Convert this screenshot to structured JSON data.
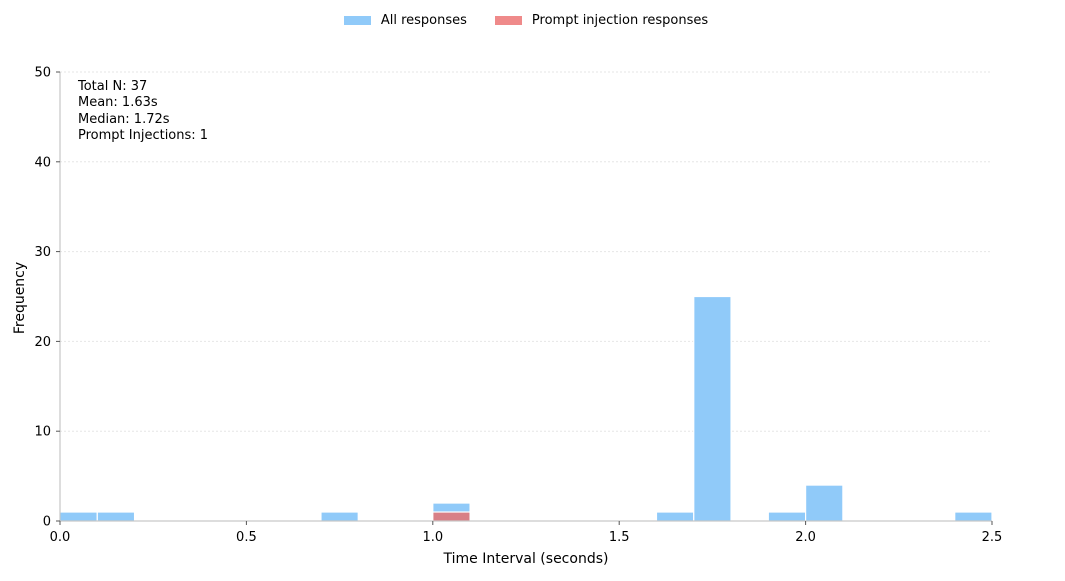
{
  "chart_data": {
    "type": "bar",
    "title": "",
    "xlabel": "Time Interval (seconds)",
    "ylabel": "Frequency",
    "xlim": [
      0,
      2.5
    ],
    "ylim": [
      0,
      50
    ],
    "xticks": [
      "0.0",
      "0.5",
      "1.0",
      "1.5",
      "2.0",
      "2.5"
    ],
    "yticks": [
      "0",
      "10",
      "20",
      "30",
      "40",
      "50"
    ],
    "grid": true,
    "legend_position": "top-center",
    "bin_width": 0.1,
    "series": [
      {
        "name": "All responses",
        "color": "#90CAF9",
        "bins": [
          {
            "start": 0.0,
            "value": 1
          },
          {
            "start": 0.1,
            "value": 1
          },
          {
            "start": 0.7,
            "value": 1
          },
          {
            "start": 1.0,
            "value": 2
          },
          {
            "start": 1.6,
            "value": 1
          },
          {
            "start": 1.7,
            "value": 25
          },
          {
            "start": 1.9,
            "value": 1
          },
          {
            "start": 2.0,
            "value": 4
          },
          {
            "start": 2.4,
            "value": 1
          }
        ]
      },
      {
        "name": "Prompt injection responses",
        "color": "#E57373",
        "bins": [
          {
            "start": 1.0,
            "value": 1
          }
        ]
      }
    ],
    "annotation": [
      "Total N: 37",
      "Mean: 1.63s",
      "Median: 1.72s",
      "Prompt Injections: 1"
    ]
  }
}
